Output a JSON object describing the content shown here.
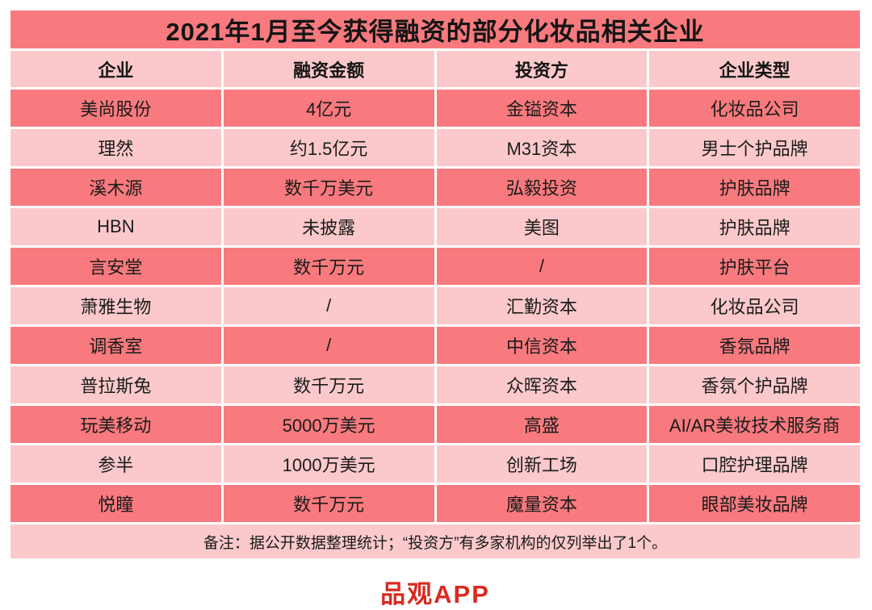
{
  "colors": {
    "row_dark": "#f87a7e",
    "row_light": "#fbc9cb",
    "brand_red": "#da2a20",
    "text": "#1b1b1b"
  },
  "footer_brand": "品观APP",
  "chart_data": {
    "type": "table",
    "title": "2021年1月至今获得融资的部分化妆品相关企业",
    "columns": [
      "企业",
      "融资金额",
      "投资方",
      "企业类型"
    ],
    "rows": [
      [
        "美尚股份",
        "4亿元",
        "金镒资本",
        "化妆品公司"
      ],
      [
        "理然",
        "约1.5亿元",
        "M31资本",
        "男士个护品牌"
      ],
      [
        "溪木源",
        "数千万美元",
        "弘毅投资",
        "护肤品牌"
      ],
      [
        "HBN",
        "未披露",
        "美图",
        "护肤品牌"
      ],
      [
        "言安堂",
        "数千万元",
        "/",
        "护肤平台"
      ],
      [
        "萧雅生物",
        "/",
        "汇勤资本",
        "化妆品公司"
      ],
      [
        "调香室",
        "/",
        "中信资本",
        "香氛品牌"
      ],
      [
        "普拉斯兔",
        "数千万元",
        "众晖资本",
        "香氛个护品牌"
      ],
      [
        "玩美移动",
        "5000万美元",
        "高盛",
        "AI/AR美妆技术服务商"
      ],
      [
        "参半",
        "1000万美元",
        "创新工场",
        "口腔护理品牌"
      ],
      [
        "悦瞳",
        "数千万元",
        "魔量资本",
        "眼部美妆品牌"
      ]
    ],
    "note": "备注：据公开数据整理统计；“投资方”有多家机构的仅列举出了1个。",
    "layout": {
      "row_striping": "starts-dark-alternating",
      "column_count": 4,
      "grid": "white 3px separators"
    }
  }
}
